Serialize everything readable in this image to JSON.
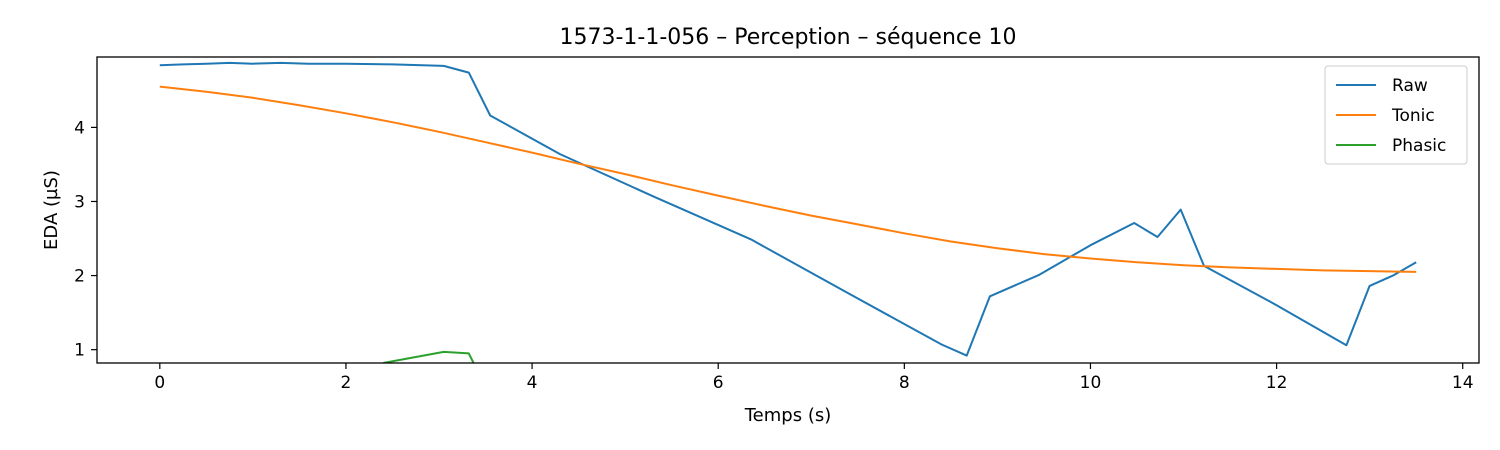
{
  "chart_data": {
    "type": "line",
    "title": "1573-1-1-056 – Perception – séquence 10",
    "xlabel": "Temps (s)",
    "ylabel": "EDA (µS)",
    "xlim": [
      -0.675,
      14.175
    ],
    "ylim": [
      0.82,
      4.95
    ],
    "xticks": [
      0,
      2,
      4,
      6,
      8,
      10,
      12,
      14
    ],
    "yticks": [
      1,
      2,
      3,
      4
    ],
    "grid": false,
    "legend_position": "top-right",
    "series": [
      {
        "name": "Raw",
        "color": "#1f77b4",
        "x": [
          0,
          0.25,
          0.5,
          0.75,
          1.0,
          1.3,
          1.6,
          2.0,
          2.5,
          3.05,
          3.32,
          3.55,
          4.3,
          5.3,
          6.35,
          7.4,
          8.4,
          8.67,
          8.92,
          9.45,
          10.0,
          10.47,
          10.72,
          10.97,
          11.22,
          12.0,
          12.75,
          13.0,
          13.25,
          13.5
        ],
        "y": [
          4.84,
          4.85,
          4.86,
          4.87,
          4.86,
          4.87,
          4.86,
          4.86,
          4.85,
          4.83,
          4.74,
          4.16,
          3.64,
          3.07,
          2.49,
          1.76,
          1.07,
          0.92,
          1.72,
          2.01,
          2.41,
          2.71,
          2.52,
          2.89,
          2.13,
          1.6,
          1.06,
          1.86,
          2.0,
          2.18
        ]
      },
      {
        "name": "Tonic",
        "color": "#ff7f0e",
        "x": [
          0,
          0.5,
          1,
          1.5,
          2,
          2.5,
          3,
          3.5,
          4,
          4.5,
          5,
          5.5,
          6,
          6.5,
          7,
          7.5,
          8,
          8.5,
          9,
          9.5,
          10,
          10.5,
          11,
          11.5,
          12,
          12.5,
          13,
          13.5
        ],
        "y": [
          4.55,
          4.48,
          4.4,
          4.3,
          4.19,
          4.07,
          3.94,
          3.8,
          3.66,
          3.51,
          3.37,
          3.22,
          3.08,
          2.94,
          2.81,
          2.69,
          2.57,
          2.46,
          2.37,
          2.29,
          2.23,
          2.18,
          2.14,
          2.11,
          2.09,
          2.07,
          2.06,
          2.05
        ]
      },
      {
        "name": "Phasic",
        "color": "#2ca02c",
        "x": [
          2.4,
          3.05,
          3.32,
          3.4
        ],
        "y": [
          0.82,
          0.97,
          0.95,
          0.75
        ]
      }
    ]
  }
}
